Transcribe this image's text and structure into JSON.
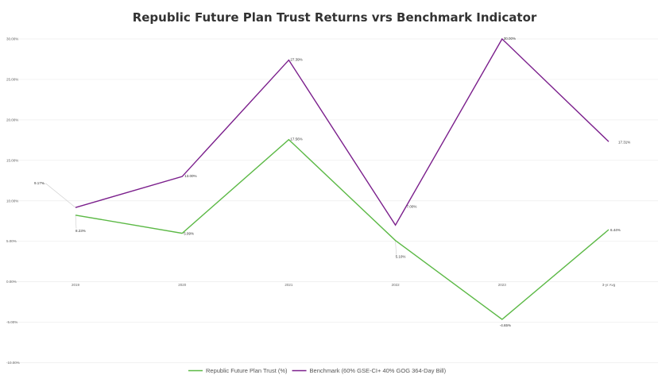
{
  "chart_data": {
    "type": "line",
    "title": "Republic Future Plan Trust Returns vrs Benchmark Indicator",
    "xlabel": "",
    "ylabel": "",
    "categories": [
      "2019",
      "2020",
      "2021",
      "2022",
      "2023",
      "3-yr Avg"
    ],
    "ylim": [
      -10,
      30
    ],
    "yticks": [
      -10,
      -5,
      0,
      5,
      10,
      15,
      20,
      25,
      30
    ],
    "ytick_labels": [
      "-10.00%",
      "-5.00%",
      "0.00%",
      "5.00%",
      "10.00%",
      "15.00%",
      "20.00%",
      "25.00%",
      "30.00%"
    ],
    "grid": true,
    "legend_position": "bottom",
    "series": [
      {
        "name": "Republic Future Plan Trust (%)",
        "color": "#5cb946",
        "values": [
          8.23,
          5.99,
          17.56,
          5.1,
          -4.65,
          6.44
        ],
        "labels": [
          "8.23%",
          "5.99%",
          "17.56%",
          "5.10%",
          "-4.65%",
          "6.44%"
        ]
      },
      {
        "name": "Benchmark (60% GSE-CI+ 40% GOG 364-Day Bill)",
        "color": "#7b1f8c",
        "values": [
          9.17,
          13.0,
          27.39,
          7.0,
          30.0,
          17.31
        ],
        "labels": [
          "9.17%",
          "13.00%",
          "27.39%",
          "7.00%",
          "30.00%",
          "17.31%"
        ]
      }
    ]
  }
}
